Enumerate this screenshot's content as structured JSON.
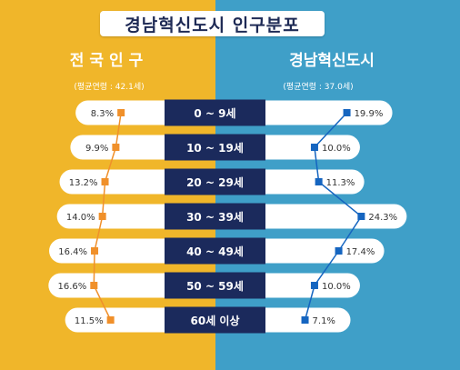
{
  "title": "경남혁신도시 인구분포",
  "left": {
    "heading": "전국인구",
    "subtitle": "(평균연령 : 42.1세)"
  },
  "right": {
    "heading": "경남혁신도시",
    "subtitle": "(평균연령 : 37.0세)"
  },
  "colors": {
    "left_bg": "#f0b62a",
    "right_bg": "#3f9fc8",
    "center_band": "#1b2a5c",
    "left_series": "#f0902a",
    "right_series": "#1565c0"
  },
  "chart_data": {
    "type": "bar",
    "categories": [
      "0 ~ 9세",
      "10 ~ 19세",
      "20 ~ 29세",
      "30 ~ 39세",
      "40 ~ 49세",
      "50 ~ 59세",
      "60세 이상"
    ],
    "series": [
      {
        "name": "전국인구",
        "values": [
          8.3,
          9.9,
          13.2,
          14.0,
          16.4,
          16.6,
          11.5
        ],
        "labels": [
          "8.3%",
          "9.9%",
          "13.2%",
          "14.0%",
          "16.4%",
          "16.6%",
          "11.5%"
        ]
      },
      {
        "name": "경남혁신도시",
        "values": [
          19.9,
          10.0,
          11.3,
          24.3,
          17.4,
          10.0,
          7.1
        ],
        "labels": [
          "19.9%",
          "10.0%",
          "11.3%",
          "24.3%",
          "17.4%",
          "10.0%",
          "7.1%"
        ]
      }
    ],
    "xlim": [
      0,
      26
    ]
  }
}
